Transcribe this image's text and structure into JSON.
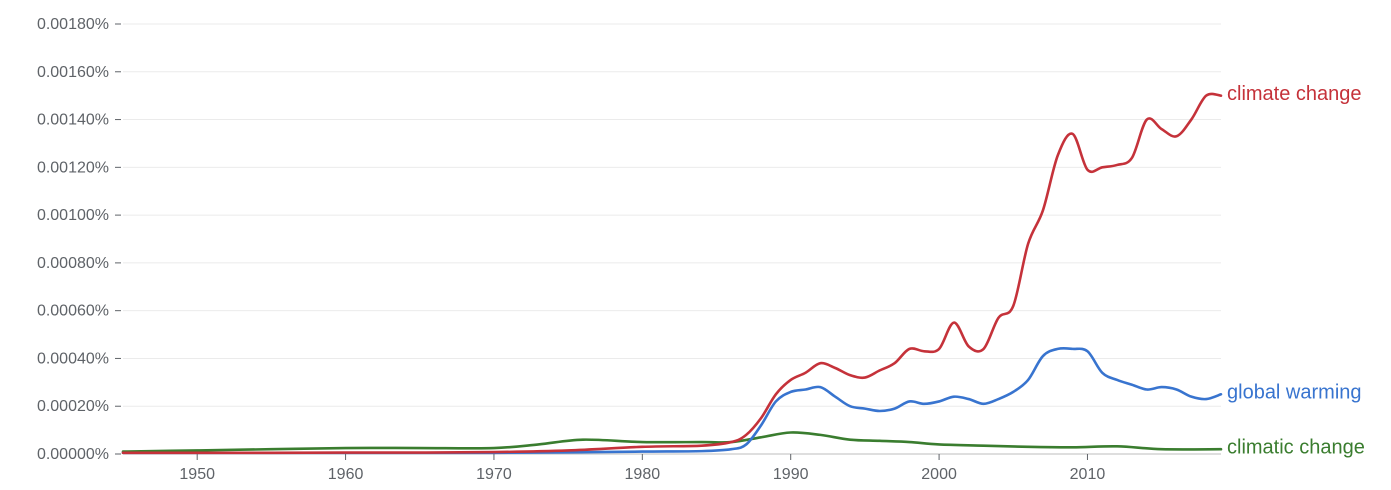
{
  "chart_data": {
    "type": "line",
    "title": "",
    "xlabel": "",
    "ylabel": "",
    "xlim": [
      1945,
      2019
    ],
    "ylim": [
      0,
      0.0018
    ],
    "y_unit": "%",
    "grid": true,
    "legend": "right-end labels",
    "x_ticks": [
      "1950",
      "1960",
      "1970",
      "1980",
      "1990",
      "2000",
      "2010"
    ],
    "y_ticks": [
      "0.00000%",
      "0.00020%",
      "0.00040%",
      "0.00060%",
      "0.00080%",
      "0.00100%",
      "0.00120%",
      "0.00140%",
      "0.00160%",
      "0.00180%"
    ],
    "y_tick_values": [
      0,
      0.0002,
      0.0004,
      0.0006,
      0.0008,
      0.001,
      0.0012,
      0.0014,
      0.0016,
      0.0018
    ],
    "x_tick_values": [
      1950,
      1960,
      1970,
      1980,
      1990,
      2000,
      2010
    ],
    "series": [
      {
        "name": "climate change",
        "color": "#c5323a",
        "x": [
          1945,
          1950,
          1955,
          1960,
          1965,
          1970,
          1975,
          1980,
          1984,
          1986,
          1987,
          1988,
          1989,
          1990,
          1991,
          1992,
          1993,
          1994,
          1995,
          1996,
          1997,
          1998,
          1999,
          2000,
          2001,
          2002,
          2003,
          2004,
          2005,
          2006,
          2007,
          2008,
          2009,
          2010,
          2011,
          2012,
          2013,
          2014,
          2015,
          2016,
          2017,
          2018,
          2019
        ],
        "values": [
          5e-06,
          5e-06,
          5e-06,
          6e-06,
          6e-06,
          8e-06,
          1.5e-05,
          3e-05,
          3.5e-05,
          5e-05,
          8e-05,
          0.00015,
          0.00025,
          0.00031,
          0.00034,
          0.00038,
          0.00036,
          0.00033,
          0.00032,
          0.00035,
          0.00038,
          0.00044,
          0.00043,
          0.00044,
          0.00055,
          0.00045,
          0.00044,
          0.00057,
          0.00062,
          0.00088,
          0.00102,
          0.00125,
          0.00134,
          0.00119,
          0.0012,
          0.00121,
          0.00124,
          0.0014,
          0.00136,
          0.00133,
          0.0014,
          0.0015,
          0.0015
        ]
      },
      {
        "name": "global warming",
        "color": "#3874cf",
        "x": [
          1945,
          1950,
          1955,
          1960,
          1965,
          1970,
          1975,
          1980,
          1984,
          1986,
          1987,
          1988,
          1989,
          1990,
          1991,
          1992,
          1993,
          1994,
          1995,
          1996,
          1997,
          1998,
          1999,
          2000,
          2001,
          2002,
          2003,
          2004,
          2005,
          2006,
          2007,
          2008,
          2009,
          2010,
          2011,
          2012,
          2013,
          2014,
          2015,
          2016,
          2017,
          2018,
          2019
        ],
        "values": [
          5e-06,
          5e-06,
          5e-06,
          5e-06,
          5e-06,
          5e-06,
          7e-06,
          1e-05,
          1.2e-05,
          2e-05,
          4e-05,
          0.00012,
          0.00022,
          0.00026,
          0.00027,
          0.00028,
          0.00024,
          0.0002,
          0.00019,
          0.00018,
          0.00019,
          0.00022,
          0.00021,
          0.00022,
          0.00024,
          0.00023,
          0.00021,
          0.00023,
          0.00026,
          0.00031,
          0.00041,
          0.00044,
          0.00044,
          0.00043,
          0.00034,
          0.00031,
          0.00029,
          0.00027,
          0.00028,
          0.00027,
          0.00024,
          0.00023,
          0.00025
        ]
      },
      {
        "name": "climatic change",
        "color": "#3a7d2f",
        "x": [
          1945,
          1950,
          1955,
          1960,
          1965,
          1970,
          1973,
          1976,
          1980,
          1984,
          1986,
          1988,
          1990,
          1992,
          1994,
          1996,
          1998,
          2000,
          2003,
          2006,
          2009,
          2012,
          2015,
          2019
        ],
        "values": [
          1e-05,
          1.5e-05,
          2e-05,
          2.5e-05,
          2.5e-05,
          2.5e-05,
          4e-05,
          6e-05,
          5e-05,
          5e-05,
          5e-05,
          7e-05,
          9e-05,
          8e-05,
          6e-05,
          5.5e-05,
          5e-05,
          4e-05,
          3.5e-05,
          3e-05,
          2.8e-05,
          3.2e-05,
          2e-05,
          2e-05
        ]
      }
    ]
  }
}
